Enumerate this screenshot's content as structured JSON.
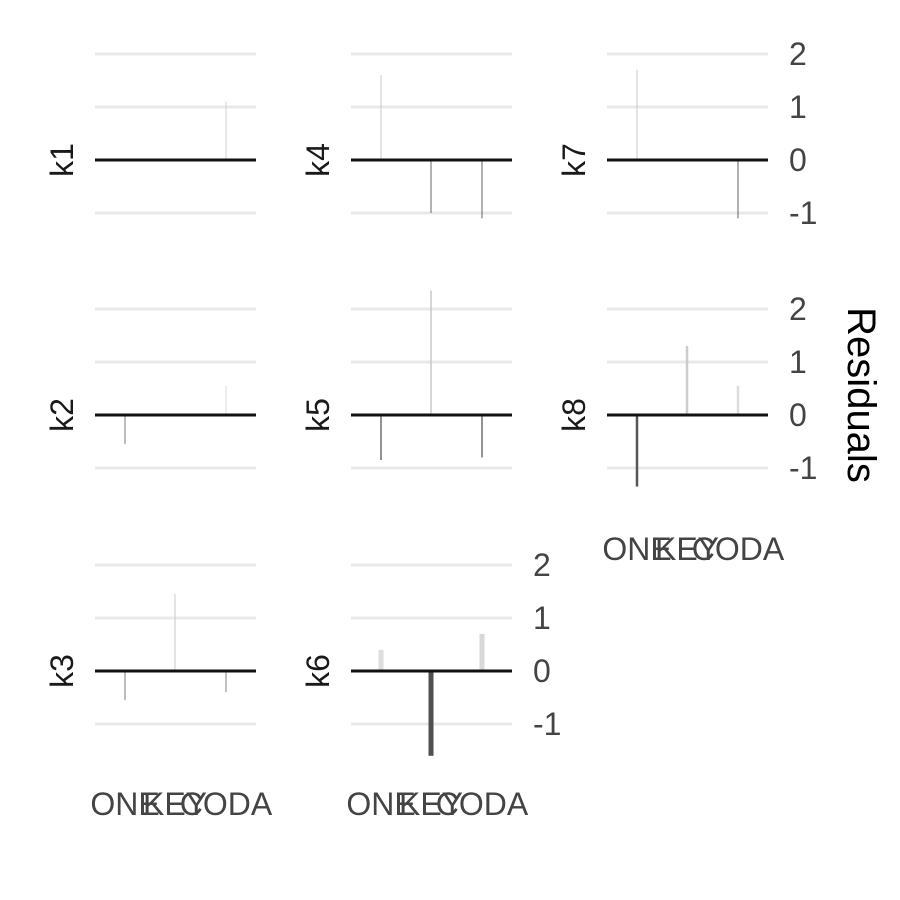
{
  "chart_data": {
    "type": "bar",
    "ylabel": "Residuals",
    "categories": [
      "ONE",
      "KEY",
      "CODA"
    ],
    "y_ticks": [
      -1,
      0,
      1,
      2
    ],
    "ylim": [
      -1.6,
      2.5
    ],
    "grid": true,
    "panels": [
      {
        "name": "k1",
        "values": [
          0.0,
          0.0,
          1.1
        ]
      },
      {
        "name": "k4",
        "values": [
          1.6,
          -1.0,
          -1.1
        ]
      },
      {
        "name": "k7",
        "values": [
          1.7,
          0.0,
          -1.1
        ]
      },
      {
        "name": "k2",
        "values": [
          -0.55,
          0.0,
          0.55
        ]
      },
      {
        "name": "k5",
        "values": [
          -0.85,
          2.35,
          -0.8
        ]
      },
      {
        "name": "k8",
        "values": [
          -1.35,
          1.3,
          0.55
        ]
      },
      {
        "name": "k3",
        "values": [
          -0.55,
          1.45,
          -0.4
        ]
      },
      {
        "name": "k6",
        "values": [
          0.4,
          -1.6,
          0.7
        ]
      }
    ]
  }
}
